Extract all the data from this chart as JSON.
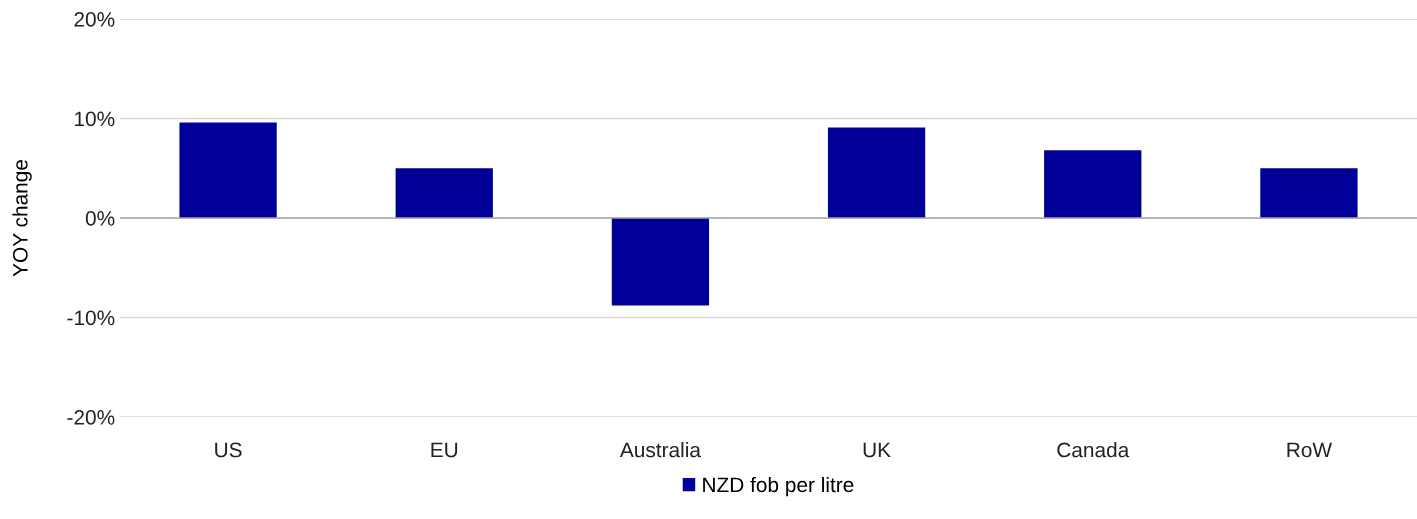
{
  "chart_data": {
    "type": "bar",
    "ylabel": "YOY change",
    "categories": [
      "US",
      "EU",
      "Australia",
      "UK",
      "Canada",
      "RoW"
    ],
    "series": [
      {
        "name": "NZD fob per litre",
        "color": "#000099",
        "values": [
          9.6,
          5.0,
          -8.8,
          9.1,
          6.8,
          5.0
        ]
      }
    ],
    "ylim": [
      -20,
      20
    ],
    "yticks": [
      {
        "value": -20,
        "label": "-20%"
      },
      {
        "value": -10,
        "label": "-10%"
      },
      {
        "value": 0,
        "label": "0%"
      },
      {
        "value": 10,
        "label": "10%"
      },
      {
        "value": 20,
        "label": "20%"
      }
    ],
    "grid": "y",
    "legend": "bottom"
  }
}
